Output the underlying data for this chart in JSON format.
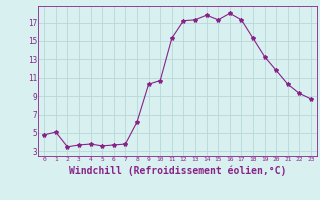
{
  "x": [
    0,
    1,
    2,
    3,
    4,
    5,
    6,
    7,
    8,
    9,
    10,
    11,
    12,
    13,
    14,
    15,
    16,
    17,
    18,
    19,
    20,
    21,
    22,
    23
  ],
  "y": [
    4.8,
    5.1,
    3.5,
    3.7,
    3.8,
    3.6,
    3.7,
    3.8,
    6.2,
    10.3,
    10.7,
    15.3,
    17.2,
    17.3,
    17.8,
    17.3,
    18.0,
    17.3,
    15.3,
    13.3,
    11.8,
    10.3,
    9.3,
    8.7
  ],
  "line_color": "#882288",
  "marker": "*",
  "marker_size": 3,
  "bg_color": "#d8f0f0",
  "grid_color": "#b8d8d8",
  "tick_color": "#882288",
  "label_color": "#882288",
  "xlabel": "Windchill (Refroidissement éolien,°C)",
  "xlabel_fontsize": 7,
  "ytick_labels": [
    "3",
    "5",
    "7",
    "9",
    "11",
    "13",
    "15",
    "17"
  ],
  "ytick_values": [
    3,
    5,
    7,
    9,
    11,
    13,
    15,
    17
  ],
  "ylim": [
    2.5,
    18.8
  ],
  "xlim": [
    -0.5,
    23.5
  ]
}
